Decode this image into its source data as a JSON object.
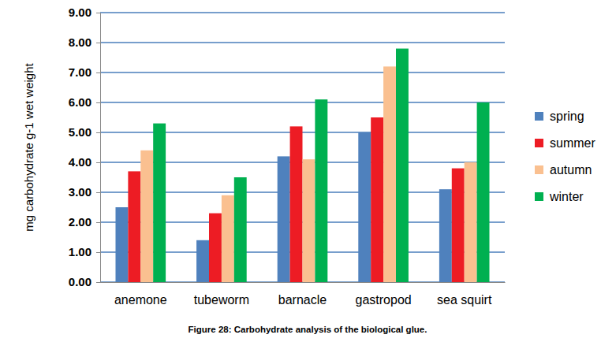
{
  "chart_data": {
    "type": "bar",
    "title": "Figure 28: Carbohydrate analysis of the biological glue.",
    "y_label": "mg carbohydrate g-1 wet weight",
    "categories": [
      "anemone",
      "tubeworm",
      "barnacle",
      "gastropod",
      "sea squirt"
    ],
    "series": [
      {
        "name": "spring",
        "color": "#4f81bd",
        "values": [
          2.5,
          1.4,
          4.2,
          5.0,
          3.1
        ]
      },
      {
        "name": "summer",
        "color": "#ed1c24",
        "values": [
          3.7,
          2.3,
          5.2,
          5.5,
          3.8
        ]
      },
      {
        "name": "autumn",
        "color": "#fac090",
        "values": [
          4.4,
          2.9,
          4.1,
          7.2,
          4.0
        ]
      },
      {
        "name": "winter",
        "color": "#00b050",
        "values": [
          5.3,
          3.5,
          6.1,
          7.8,
          6.0
        ]
      }
    ],
    "ylim": [
      0,
      9
    ],
    "yticks": [
      {
        "value": 0,
        "label": "0.00"
      },
      {
        "value": 1,
        "label": "1.00"
      },
      {
        "value": 2,
        "label": "2.00"
      },
      {
        "value": 3,
        "label": "3.00"
      },
      {
        "value": 4,
        "label": "4.00"
      },
      {
        "value": 5,
        "label": "5.00"
      },
      {
        "value": 6,
        "label": "6.00"
      },
      {
        "value": 7,
        "label": "7.00"
      },
      {
        "value": 8,
        "label": "8.00"
      },
      {
        "value": 9,
        "label": "9.00"
      }
    ],
    "grid": true,
    "legend": "right"
  }
}
